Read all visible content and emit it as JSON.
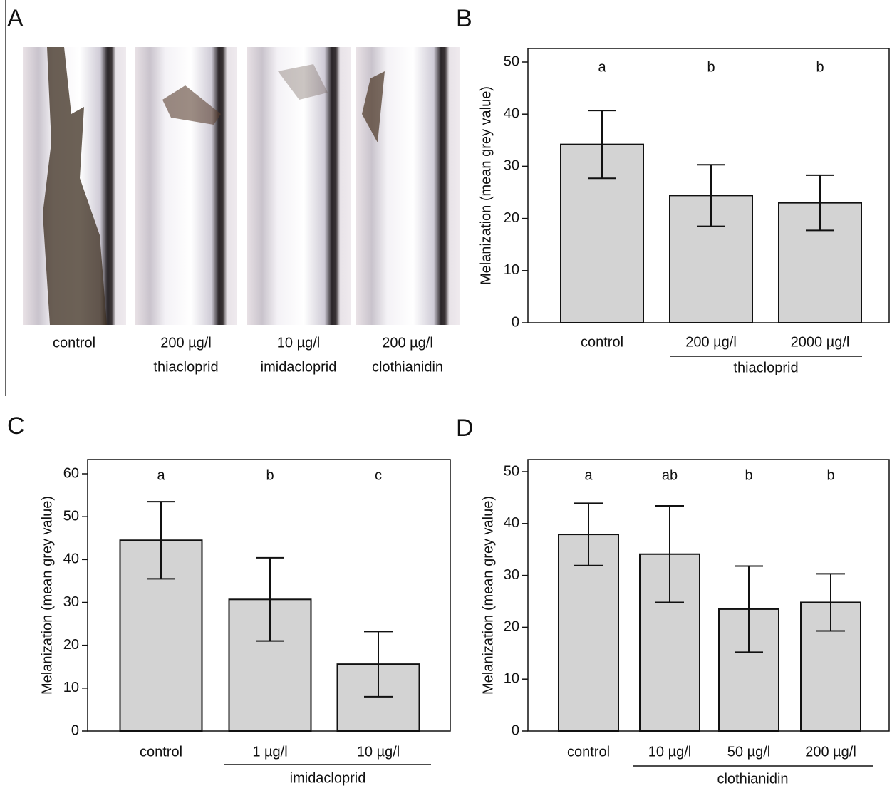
{
  "panel_a": {
    "letter": "A",
    "captions": [
      [
        "control"
      ],
      [
        "200 µg/l",
        "thiacloprid"
      ],
      [
        "10  µg/l",
        "imidacloprid"
      ],
      [
        "200 µg/l",
        "clothianidin"
      ]
    ]
  },
  "chart_data": [
    {
      "type": "bar",
      "letter": "B",
      "ylabel": "Melanization (mean grey value)",
      "categories": [
        "control",
        "200 µg/l",
        "2000 µg/l"
      ],
      "values": [
        34.2,
        24.4,
        23.0
      ],
      "errors": [
        6.5,
        5.9,
        5.3
      ],
      "annotations": [
        "a",
        "b",
        "b"
      ],
      "group_label": "thiacloprid",
      "color": "#d3d3d3",
      "ylim": [
        0,
        50
      ],
      "yticks": [
        0,
        10,
        20,
        30,
        40,
        50
      ]
    },
    {
      "type": "bar",
      "letter": "C",
      "ylabel": "Melanization (mean grey value)",
      "categories": [
        "control",
        "1 µg/l",
        "10 µg/l"
      ],
      "values": [
        44.5,
        30.7,
        15.6
      ],
      "errors": [
        9.0,
        9.7,
        7.6
      ],
      "annotations": [
        "a",
        "b",
        "c"
      ],
      "group_label": "imidacloprid",
      "color": "#d3d3d3",
      "ylim": [
        0,
        60
      ],
      "yticks": [
        0,
        10,
        20,
        30,
        40,
        50,
        60
      ]
    },
    {
      "type": "bar",
      "letter": "D",
      "ylabel": "Melanization (mean grey value)",
      "categories": [
        "control",
        "10 µg/l",
        "50 µg/l",
        "200 µg/l"
      ],
      "values": [
        37.9,
        34.1,
        23.5,
        24.8
      ],
      "errors": [
        6.0,
        9.3,
        8.3,
        5.5
      ],
      "annotations": [
        "a",
        "ab",
        "b",
        "b"
      ],
      "group_label": "clothianidin",
      "color": "#d3d3d3",
      "ylim": [
        0,
        50
      ],
      "yticks": [
        0,
        10,
        20,
        30,
        40,
        50
      ]
    }
  ]
}
